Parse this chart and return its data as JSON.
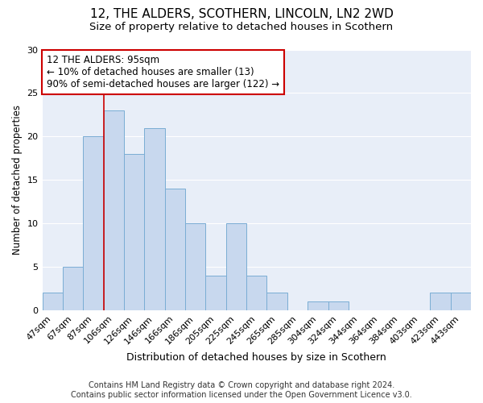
{
  "title1": "12, THE ALDERS, SCOTHERN, LINCOLN, LN2 2WD",
  "title2": "Size of property relative to detached houses in Scothern",
  "xlabel": "Distribution of detached houses by size in Scothern",
  "ylabel": "Number of detached properties",
  "categories": [
    "47sqm",
    "67sqm",
    "87sqm",
    "106sqm",
    "126sqm",
    "146sqm",
    "166sqm",
    "186sqm",
    "205sqm",
    "225sqm",
    "245sqm",
    "265sqm",
    "285sqm",
    "304sqm",
    "324sqm",
    "344sqm",
    "364sqm",
    "384sqm",
    "403sqm",
    "423sqm",
    "443sqm"
  ],
  "values": [
    2,
    5,
    20,
    23,
    18,
    21,
    14,
    10,
    4,
    10,
    4,
    2,
    0,
    1,
    1,
    0,
    0,
    0,
    0,
    2,
    2
  ],
  "bar_color": "#c8d8ee",
  "bar_edge_color": "#7aadd4",
  "vline_x_index": 2,
  "vline_color": "#cc0000",
  "annotation_line1": "12 THE ALDERS: 95sqm",
  "annotation_line2": "← 10% of detached houses are smaller (13)",
  "annotation_line3": "90% of semi-detached houses are larger (122) →",
  "annotation_box_facecolor": "#ffffff",
  "annotation_box_edgecolor": "#cc0000",
  "ylim": [
    0,
    30
  ],
  "yticks": [
    0,
    5,
    10,
    15,
    20,
    25,
    30
  ],
  "fig_facecolor": "#ffffff",
  "axes_facecolor": "#e8eef8",
  "grid_color": "#ffffff",
  "footer": "Contains HM Land Registry data © Crown copyright and database right 2024.\nContains public sector information licensed under the Open Government Licence v3.0.",
  "title1_fontsize": 11,
  "title2_fontsize": 9.5,
  "xlabel_fontsize": 9,
  "ylabel_fontsize": 8.5,
  "tick_fontsize": 8,
  "footer_fontsize": 7
}
